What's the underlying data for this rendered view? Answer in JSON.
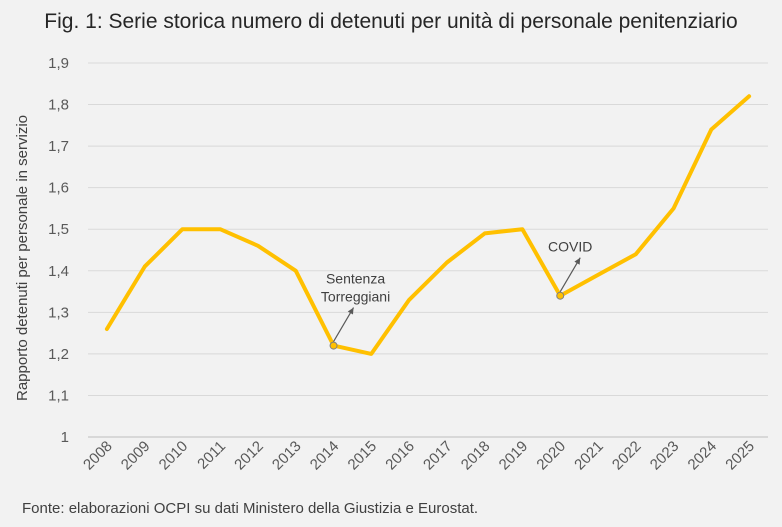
{
  "chart_data": {
    "type": "line",
    "title": "Fig. 1: Serie storica numero di detenuti per unità di personale penitenziario",
    "xlabel": "",
    "ylabel": "Rapporto detenuti per personale in servizio",
    "ylim": [
      1,
      1.9
    ],
    "y_ticks": [
      "1",
      "1,1",
      "1,2",
      "1,3",
      "1,4",
      "1,5",
      "1,6",
      "1,7",
      "1,8",
      "1,9"
    ],
    "grid": true,
    "series_color": "#ffc000",
    "categories": [
      "2008",
      "2009",
      "2010",
      "2011",
      "2012",
      "2013",
      "2014",
      "2015",
      "2016",
      "2017",
      "2018",
      "2019",
      "2020",
      "2021",
      "2022",
      "2023",
      "2024",
      "2025"
    ],
    "values": [
      1.26,
      1.41,
      1.5,
      1.5,
      1.46,
      1.4,
      1.22,
      1.2,
      1.33,
      1.42,
      1.49,
      1.5,
      1.34,
      1.39,
      1.44,
      1.55,
      1.74,
      1.82
    ],
    "annotations": [
      {
        "text_lines": [
          "Sentenza",
          "Torreggiani"
        ],
        "category": "2014",
        "value": 1.22
      },
      {
        "text_lines": [
          "COVID"
        ],
        "category": "2020",
        "value": 1.34
      }
    ]
  },
  "source": "Fonte: elaborazioni OCPI su dati Ministero della Giustizia e Eurostat."
}
